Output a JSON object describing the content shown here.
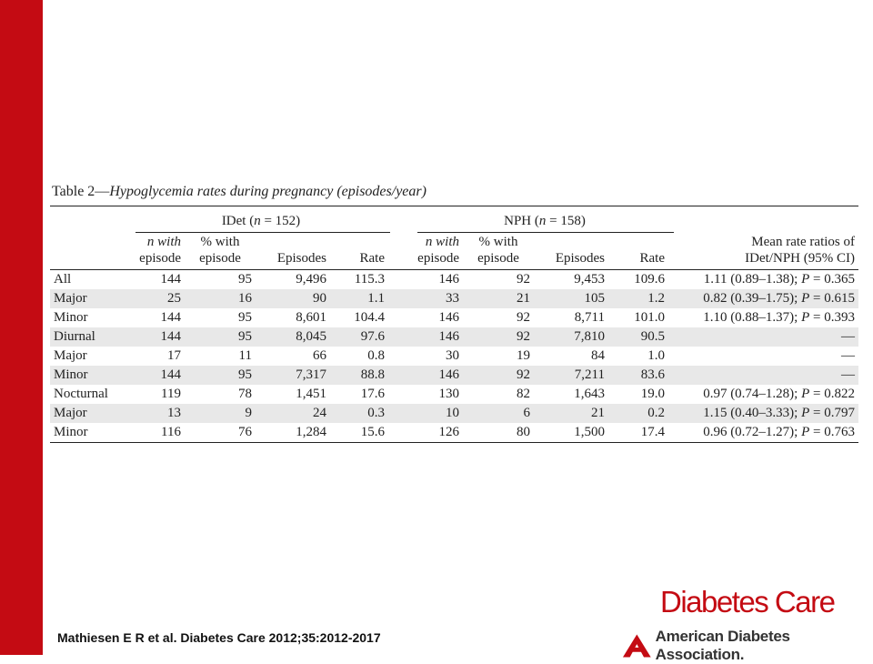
{
  "table": {
    "title_prefix": "Table 2—",
    "title_italic": "Hypoglycemia rates during pregnancy (episodes/year)",
    "groups": {
      "idet": "IDet (n = 152)",
      "nph": "NPH (n = 158)"
    },
    "columns": {
      "n_with_1": "n with",
      "n_with_2": "episode",
      "pct_with_1": "% with",
      "pct_with_2": "episode",
      "episodes": "Episodes",
      "rate": "Rate",
      "ratio_1": "Mean rate ratios of",
      "ratio_2": "IDet/NPH (95% CI)"
    },
    "rows": [
      {
        "label": "All",
        "sub": false,
        "shade": false,
        "a_n": "144",
        "a_pct": "95",
        "a_ep": "9,496",
        "a_rate": "115.3",
        "b_n": "146",
        "b_pct": "92",
        "b_ep": "9,453",
        "b_rate": "109.6",
        "ratio": "1.11 (0.89–1.38); P = 0.365"
      },
      {
        "label": "Major",
        "sub": true,
        "shade": true,
        "a_n": "25",
        "a_pct": "16",
        "a_ep": "90",
        "a_rate": "1.1",
        "b_n": "33",
        "b_pct": "21",
        "b_ep": "105",
        "b_rate": "1.2",
        "ratio": "0.82 (0.39–1.75); P = 0.615"
      },
      {
        "label": "Minor",
        "sub": true,
        "shade": false,
        "a_n": "144",
        "a_pct": "95",
        "a_ep": "8,601",
        "a_rate": "104.4",
        "b_n": "146",
        "b_pct": "92",
        "b_ep": "8,711",
        "b_rate": "101.0",
        "ratio": "1.10 (0.88–1.37); P = 0.393"
      },
      {
        "label": "Diurnal",
        "sub": false,
        "shade": true,
        "a_n": "144",
        "a_pct": "95",
        "a_ep": "8,045",
        "a_rate": "97.6",
        "b_n": "146",
        "b_pct": "92",
        "b_ep": "7,810",
        "b_rate": "90.5",
        "ratio": "—"
      },
      {
        "label": "Major",
        "sub": true,
        "shade": false,
        "a_n": "17",
        "a_pct": "11",
        "a_ep": "66",
        "a_rate": "0.8",
        "b_n": "30",
        "b_pct": "19",
        "b_ep": "84",
        "b_rate": "1.0",
        "ratio": "—"
      },
      {
        "label": "Minor",
        "sub": true,
        "shade": true,
        "a_n": "144",
        "a_pct": "95",
        "a_ep": "7,317",
        "a_rate": "88.8",
        "b_n": "146",
        "b_pct": "92",
        "b_ep": "7,211",
        "b_rate": "83.6",
        "ratio": "—"
      },
      {
        "label": "Nocturnal",
        "sub": false,
        "shade": false,
        "a_n": "119",
        "a_pct": "78",
        "a_ep": "1,451",
        "a_rate": "17.6",
        "b_n": "130",
        "b_pct": "82",
        "b_ep": "1,643",
        "b_rate": "19.0",
        "ratio": "0.97 (0.74–1.28); P = 0.822"
      },
      {
        "label": "Major",
        "sub": true,
        "shade": true,
        "a_n": "13",
        "a_pct": "9",
        "a_ep": "24",
        "a_rate": "0.3",
        "b_n": "10",
        "b_pct": "6",
        "b_ep": "21",
        "b_rate": "0.2",
        "ratio": "1.15 (0.40–3.33); P = 0.797"
      },
      {
        "label": "Minor",
        "sub": true,
        "shade": false,
        "a_n": "116",
        "a_pct": "76",
        "a_ep": "1,284",
        "a_rate": "15.6",
        "b_n": "126",
        "b_pct": "80",
        "b_ep": "1,500",
        "b_rate": "17.4",
        "ratio": "0.96 (0.72–1.27); P = 0.763"
      }
    ]
  },
  "citation": "Mathiesen E R et al. Diabetes Care 2012;35:2012-2017",
  "logo_text": "Diabetes Care",
  "association_text": "American Diabetes Association.",
  "colors": {
    "brand_red": "#c40b13",
    "row_shade": "#e8e8e8"
  }
}
